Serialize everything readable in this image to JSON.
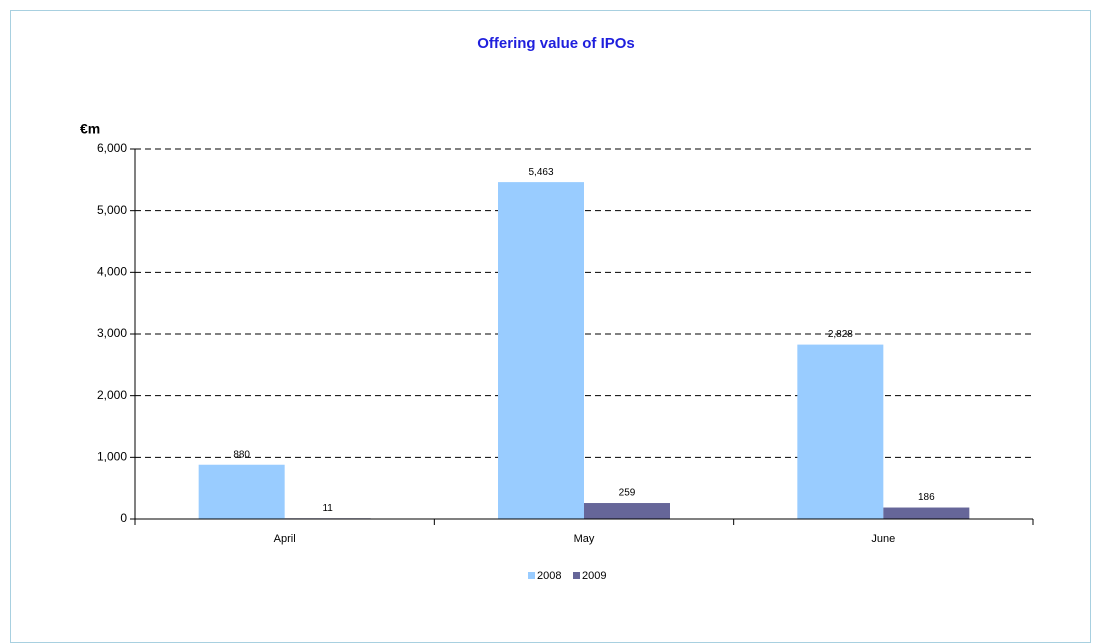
{
  "chart_data": {
    "type": "bar",
    "title": "Offering value of IPOs",
    "y_label": "€m",
    "categories": [
      "April",
      "May",
      "June"
    ],
    "series": [
      {
        "name": "2008",
        "color": "#99ccff",
        "values": [
          880,
          5463,
          2828
        ],
        "value_labels": [
          "880",
          "5,463",
          "2,828"
        ]
      },
      {
        "name": "2009",
        "color": "#666699",
        "values": [
          11,
          259,
          186
        ],
        "value_labels": [
          "11",
          "259",
          "186"
        ]
      }
    ],
    "ylim": [
      0,
      6000
    ],
    "yticks": [
      0,
      {
        "value": 1000,
        "label": "1,000"
      },
      {
        "value": 2000,
        "label": "2,000"
      },
      {
        "value": 3000,
        "label": "3,000"
      },
      {
        "value": 4000,
        "label": "4,000"
      },
      {
        "value": 5000,
        "label": "5,000"
      },
      {
        "value": 6000,
        "label": "6,000"
      }
    ],
    "grid": true,
    "legend": "bottom"
  }
}
